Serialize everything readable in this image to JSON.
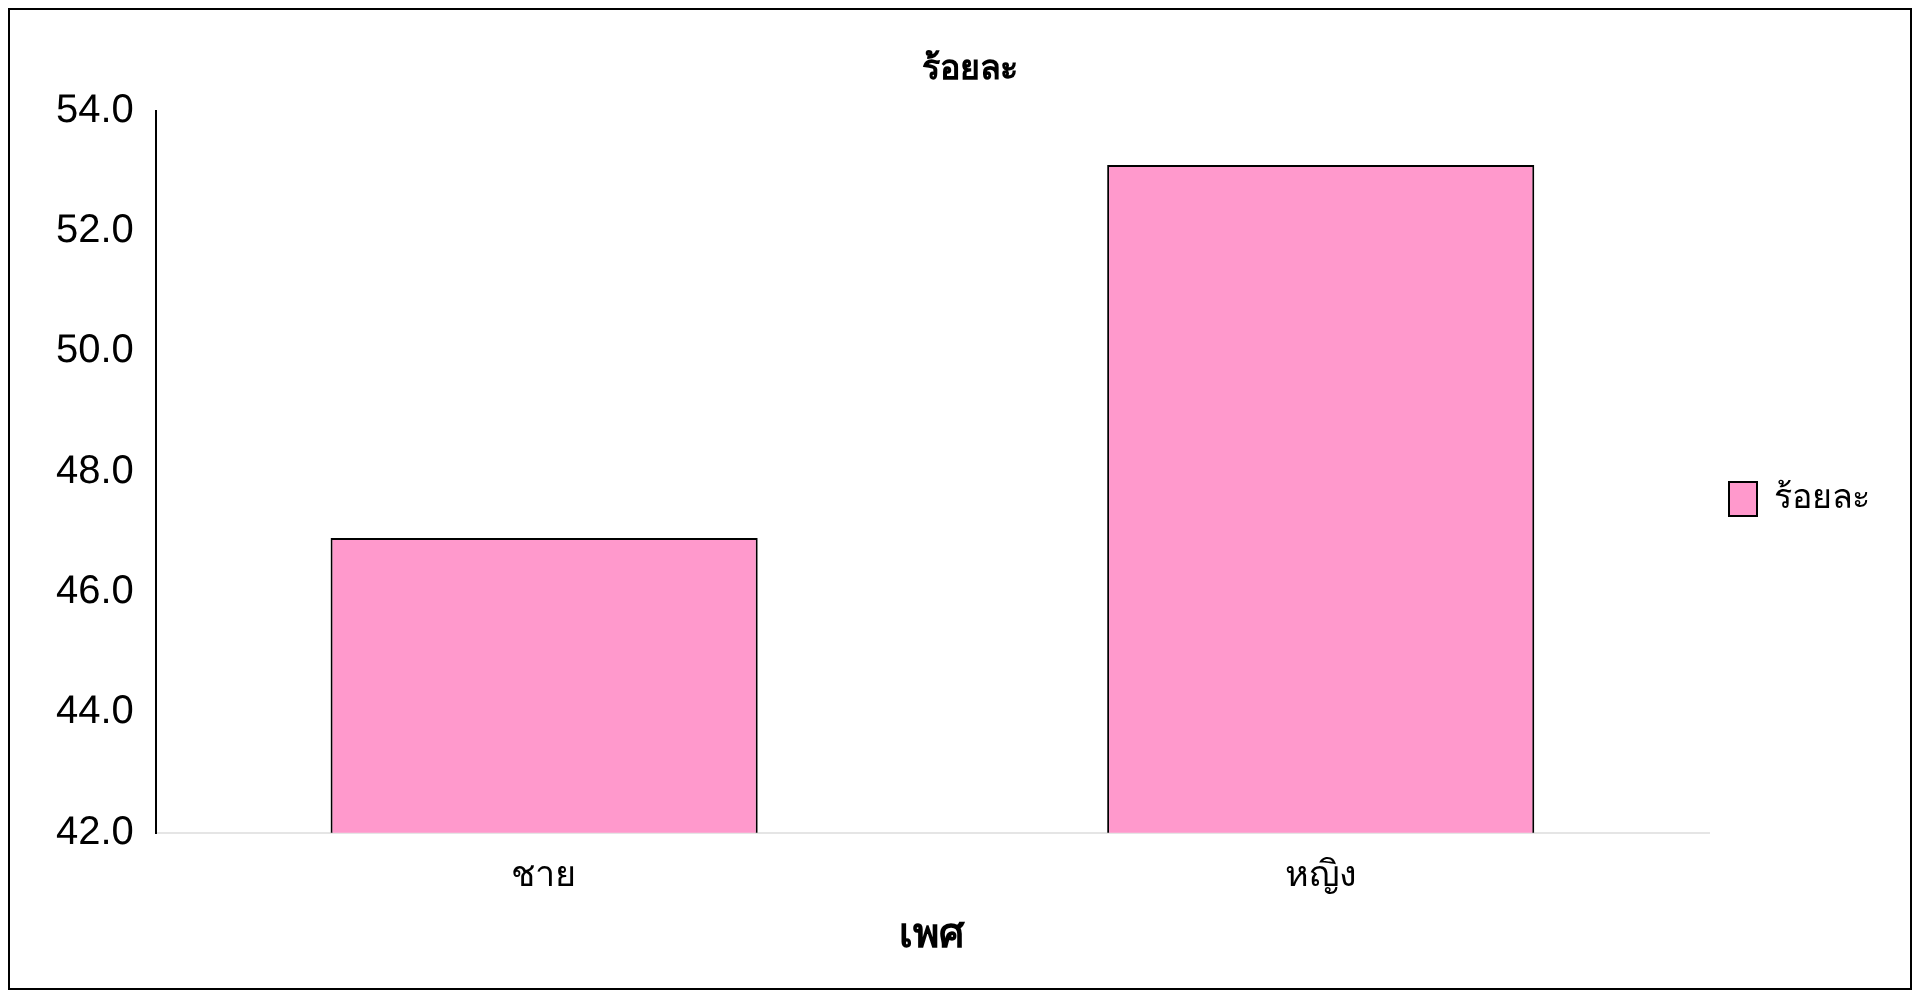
{
  "chart_data": {
    "type": "bar",
    "title": "ร้อยละ",
    "xlabel": "เพศ",
    "categories": [
      "ชาย",
      "หญิง"
    ],
    "series": [
      {
        "name": "ร้อยละ",
        "color": "#ff99cc",
        "values": [
          46.9,
          53.1
        ]
      }
    ],
    "ylim": [
      42,
      54
    ],
    "yticks": [
      {
        "value": 42,
        "label": "42.0"
      },
      {
        "value": 44,
        "label": "44.0"
      },
      {
        "value": 46,
        "label": "46.0"
      },
      {
        "value": 48,
        "label": "48.0"
      },
      {
        "value": 50,
        "label": "50.0"
      },
      {
        "value": 52,
        "label": "52.0"
      },
      {
        "value": 54,
        "label": "54.0"
      }
    ],
    "grid": false,
    "legend": "right"
  }
}
